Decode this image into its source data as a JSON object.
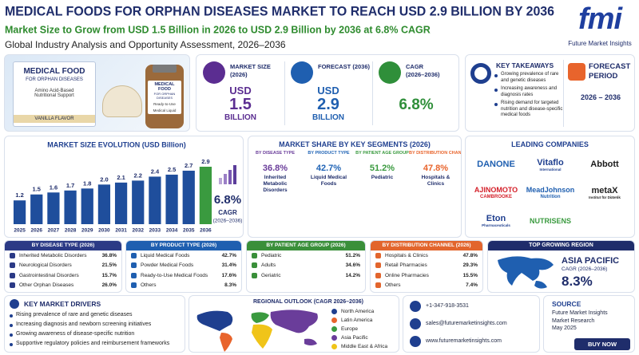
{
  "header": {
    "title": "MEDICAL FOODS FOR ORPHAN DISEASES MARKET TO REACH USD 2.9 BILLION BY 2036",
    "subtitle": "Market Size to Grow from USD 1.5 Billion in 2026 to USD 2.9 Billion by 2036 at 6.8% CAGR",
    "tagline": "Global Industry Analysis and Opportunity Assessment, 2026–2036",
    "logo": "fmi",
    "logo_caption": "Future Market Insights"
  },
  "product_image": {
    "box_title": "MEDICAL FOOD",
    "box_subtitle": "FOR ORPHAN DISEASES",
    "box_desc": "Amino Acid-Based Nutritional Support",
    "box_flavor": "VANILLA FLAVOR",
    "bottle_title": "MEDICAL FOOD",
    "bottle_subtitle": "FOR ORPHAN DISEASES",
    "bottle_desc": "Ready-to-Use",
    "bottle_label": "Medical Liquid"
  },
  "stats": [
    {
      "label": "MARKET SIZE",
      "period": "(2026)",
      "unit": "USD",
      "value": "1.5",
      "scale": "BILLION",
      "color": "#5b2d91"
    },
    {
      "label": "FORECAST (2036)",
      "unit": "USD",
      "value": "2.9",
      "scale": "BILLION",
      "color": "#1f5fb0"
    },
    {
      "label": "CAGR",
      "period": "(2026–2036)",
      "value": "6.8%",
      "color": "#2f8f3a"
    }
  ],
  "key_takeaways": {
    "title": "KEY TAKEAWAYS",
    "items": [
      "Growing prevalence of rare and genetic diseases",
      "Increasing awareness and diagnosis rates",
      "Rising demand for targeted nutrition and disease-specific medical foods"
    ]
  },
  "forecast_period": {
    "title": "FORECAST PERIOD",
    "value": "2026 – 2036"
  },
  "market_evolution": {
    "title": "MARKET SIZE EVOLUTION (USD Billion)",
    "categories": [
      "2025",
      "2026",
      "2027",
      "2028",
      "2029",
      "2030",
      "2031",
      "2032",
      "2033",
      "2034",
      "2035",
      "2036"
    ],
    "values": [
      1.2,
      1.5,
      1.6,
      1.7,
      1.8,
      2.0,
      2.1,
      2.2,
      2.4,
      2.5,
      2.7,
      2.9
    ],
    "value_labels": [
      "1.2",
      "1.5",
      "1.6",
      "1.7",
      "1.8",
      "2.0",
      "2.1",
      "2.2",
      "2.4",
      "2.5",
      "2.7",
      "2.9"
    ],
    "color": "#1f4e9c",
    "highlight_color": "#3a9a3f",
    "cagr_value": "6.8%",
    "cagr_label": "CAGR",
    "cagr_period": "(2026–2036)"
  },
  "market_share": {
    "title": "MARKET SHARE BY KEY SEGMENTS (2026)",
    "segments": [
      {
        "title": "BY DISEASE TYPE",
        "value": 36.8,
        "value_label": "36.8%",
        "label": "Inherited Metabolic Disorders",
        "color": "#6a3d9a"
      },
      {
        "title": "BY PRODUCT TYPE",
        "value": 42.7,
        "value_label": "42.7%",
        "label": "Liquid Medical Foods",
        "color": "#1f63b5"
      },
      {
        "title": "BY PATIENT AGE GROUP",
        "value": 51.2,
        "value_label": "51.2%",
        "label": "Pediatric",
        "color": "#3a9a3f"
      },
      {
        "title": "BY DISTRIBUTION CHANNEL",
        "value": 47.8,
        "value_label": "47.8%",
        "label": "Hospitals & Clinics",
        "color": "#e8642c"
      }
    ]
  },
  "leading_companies": {
    "title": "LEADING COMPANIES",
    "companies": [
      {
        "name": "DANONE",
        "color": "#1f5fb0"
      },
      {
        "name": "Vitaflo",
        "sub": "International",
        "color": "#1f3f8f"
      },
      {
        "name": "Abbott",
        "color": "#1a1a1a"
      },
      {
        "name": "AJINOMOTO",
        "sub": "CAMBROOKE",
        "color": "#d4202a"
      },
      {
        "name": "MeadJohnson",
        "sub": "Nutrition",
        "color": "#1f5fb0"
      },
      {
        "name": "metaX",
        "sub": "Institut für Diätetik",
        "color": "#222222"
      },
      {
        "name": "Eton",
        "sub": "Pharmaceuticals",
        "color": "#1f3f8f"
      },
      {
        "name": "NUTRISENS",
        "color": "#3a9a3f"
      }
    ]
  },
  "segment_tables": [
    {
      "title": "BY DISEASE TYPE (2026)",
      "color": "#2b3a86",
      "rows": [
        [
          "Inherited Metabolic Disorders",
          "36.8%"
        ],
        [
          "Neurological Disorders",
          "21.5%"
        ],
        [
          "Gastrointestinal Disorders",
          "15.7%"
        ],
        [
          "Other Orphan Diseases",
          "26.0%"
        ]
      ]
    },
    {
      "title": "BY PRODUCT TYPE (2026)",
      "color": "#1f5fb0",
      "rows": [
        [
          "Liquid Medical Foods",
          "42.7%"
        ],
        [
          "Powder Medical Foods",
          "31.4%"
        ],
        [
          "Ready-to-Use Medical Foods",
          "17.6%"
        ],
        [
          "Others",
          "8.3%"
        ]
      ]
    },
    {
      "title": "BY PATIENT AGE GROUP (2026)",
      "color": "#3a8f3a",
      "rows": [
        [
          "Pediatric",
          "51.2%"
        ],
        [
          "Adults",
          "34.6%"
        ],
        [
          "Geriatric",
          "14.2%"
        ]
      ]
    },
    {
      "title": "BY DISTRIBUTION CHANNEL (2026)",
      "color": "#e2652d",
      "rows": [
        [
          "Hospitals & Clinics",
          "47.8%"
        ],
        [
          "Retail Pharmacies",
          "29.3%"
        ],
        [
          "Online Pharmacies",
          "15.5%"
        ],
        [
          "Others",
          "7.4%"
        ]
      ]
    }
  ],
  "top_region": {
    "title": "TOP GROWING REGION",
    "region": "ASIA PACIFIC",
    "cagr_label": "CAGR (2026–2036)",
    "cagr_value": "8.3%"
  },
  "drivers": {
    "title": "KEY MARKET DRIVERS",
    "items": [
      "Rising prevalence of rare and genetic diseases",
      "Increasing diagnosis and newborn screening initiatives",
      "Growing awareness of disease-specific nutrition",
      "Supportive regulatory policies and reimbursement frameworks"
    ]
  },
  "regional_outlook": {
    "title": "REGIONAL OUTLOOK (CAGR 2026–2036)",
    "regions": [
      {
        "name": "North America",
        "color": "#1f3f8f"
      },
      {
        "name": "Latin America",
        "color": "#e8642c"
      },
      {
        "name": "Europe",
        "color": "#3a9a3f"
      },
      {
        "name": "Asia Pacific",
        "color": "#6a3d9a"
      },
      {
        "name": "Middle East & Africa",
        "color": "#f0c419"
      }
    ]
  },
  "contact": {
    "phone": "+1-347-918-3531",
    "email": "sales@futuremarketinsights.com",
    "website": "www.futuremarketinsights.com"
  },
  "source": {
    "title": "SOURCE",
    "lines": [
      "Future Market Insights",
      "Market Research",
      "May 2025"
    ],
    "button": "BUY NOW"
  }
}
